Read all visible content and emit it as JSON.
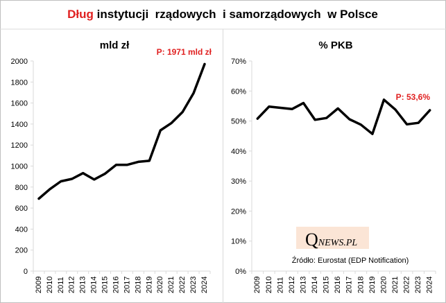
{
  "title": {
    "highlight": "Dług",
    "rest": " instytucji  rządowych  i samorządowych  w Polsce"
  },
  "colors": {
    "accent_red": "#e02020",
    "line": "#000000",
    "axis": "#d9d9d9",
    "frame": "#bfbfbf",
    "logo_bg": "#fbe5d6"
  },
  "logo": {
    "q": "Q",
    "rest": "NEWS.PL"
  },
  "source": "Źródło: Eurostat (EDP Notification)",
  "chart_data": [
    {
      "type": "line",
      "title": "mld zł",
      "x": [
        "2009",
        "2010",
        "2011",
        "2012",
        "2013",
        "2014",
        "2015",
        "2016",
        "2017",
        "2018",
        "2019",
        "2020",
        "2021",
        "2022",
        "2023",
        "2024"
      ],
      "values": [
        690,
        780,
        855,
        878,
        933,
        872,
        928,
        1011,
        1012,
        1040,
        1050,
        1340,
        1410,
        1515,
        1695,
        1971
      ],
      "ylim": [
        0,
        2000
      ],
      "yticks": [
        0,
        200,
        400,
        600,
        800,
        1000,
        1200,
        1400,
        1600,
        1800,
        2000
      ],
      "ytick_labels": [
        "0",
        "200",
        "400",
        "600",
        "800",
        "1000",
        "1200",
        "1400",
        "1600",
        "1800",
        "2000"
      ],
      "annotation": "P: 1971 mld zł",
      "grid": false,
      "xlabel": "",
      "ylabel": ""
    },
    {
      "type": "line",
      "title": "% PKB",
      "x": [
        "2009",
        "2010",
        "2011",
        "2012",
        "2013",
        "2014",
        "2015",
        "2016",
        "2017",
        "2018",
        "2019",
        "2020",
        "2021",
        "2022",
        "2023",
        "2024"
      ],
      "values": [
        50.8,
        54.8,
        54.4,
        54.0,
        56.0,
        50.4,
        51.0,
        54.2,
        50.6,
        48.8,
        45.7,
        57.1,
        53.8,
        48.9,
        49.4,
        53.6
      ],
      "ylim": [
        0,
        70
      ],
      "yticks": [
        0,
        10,
        20,
        30,
        40,
        50,
        60,
        70
      ],
      "ytick_labels": [
        "0%",
        "10%",
        "20%",
        "30%",
        "40%",
        "50%",
        "60%",
        "70%"
      ],
      "annotation": "P: 53,6%",
      "grid": false,
      "xlabel": "",
      "ylabel": ""
    }
  ]
}
